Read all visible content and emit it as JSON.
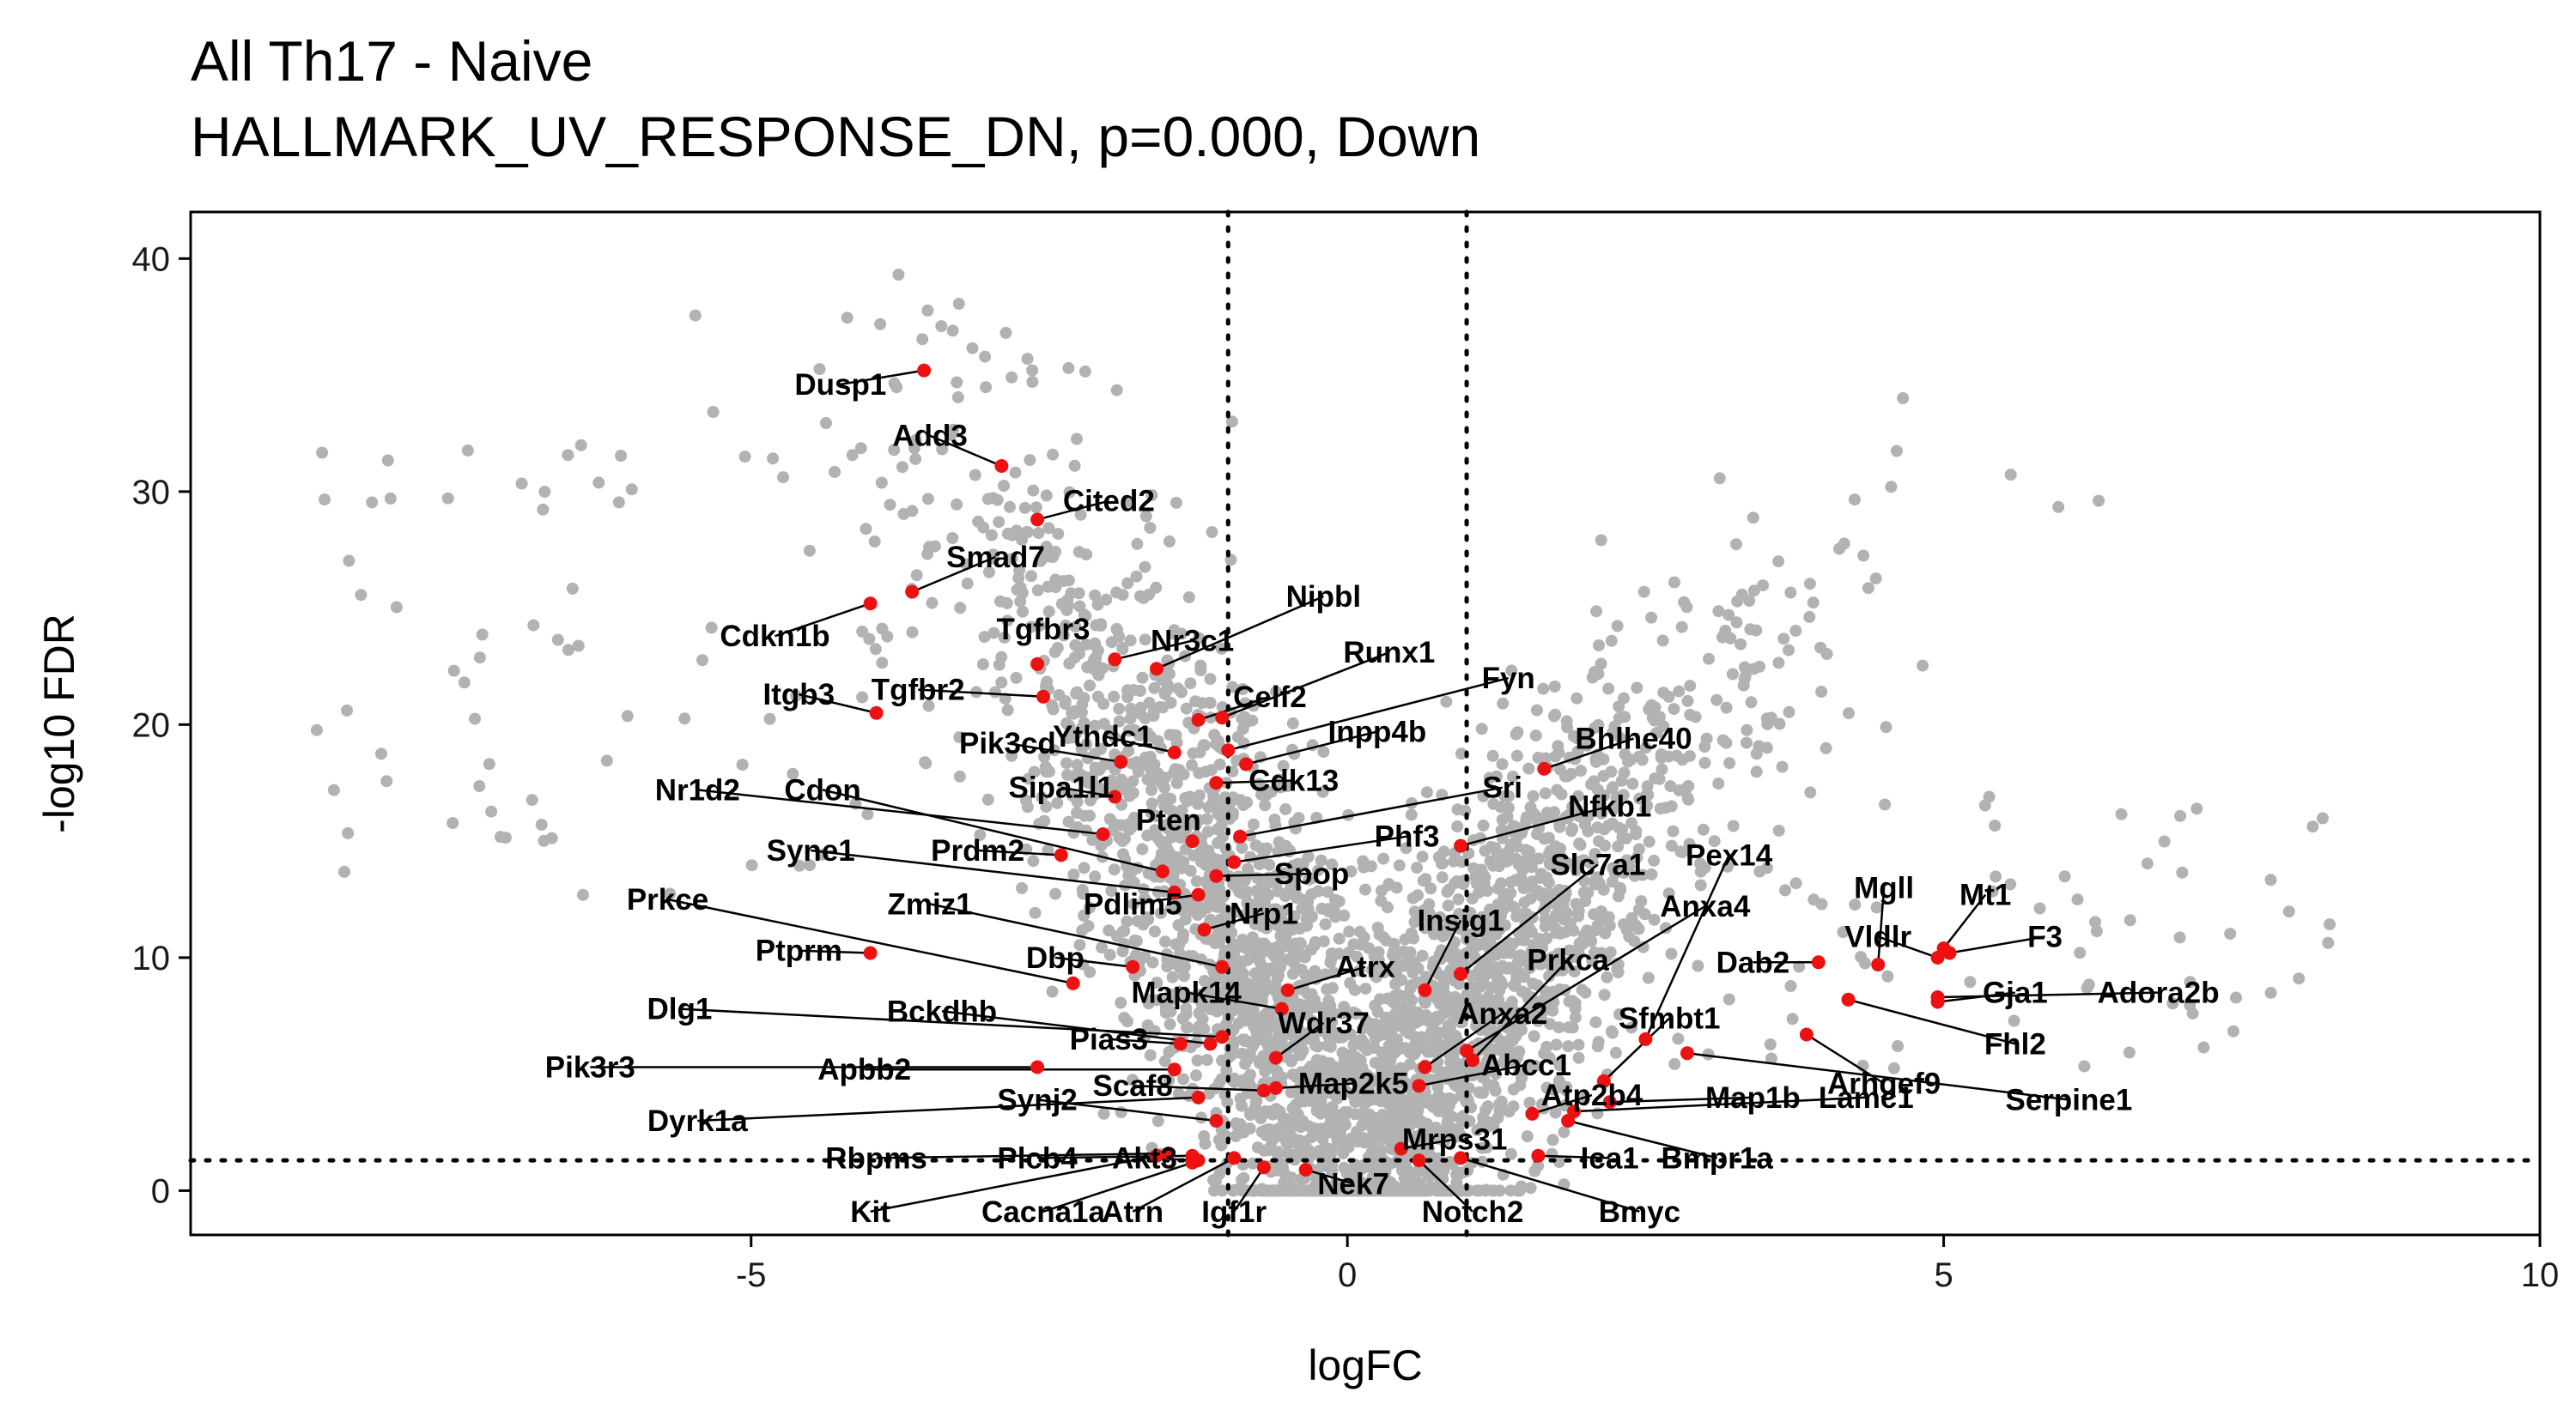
{
  "chart_data": {
    "type": "scatter",
    "title": "All Th17 - Naive",
    "subtitle": "HALLMARK_UV_RESPONSE_DN, p=0.000, Down",
    "xlabel": "logFC",
    "ylabel": "-log10 FDR",
    "xlim": [
      -9.7,
      10.0
    ],
    "ylim": [
      -1.9,
      42.0
    ],
    "x_ticks": [
      -5,
      0,
      5,
      10
    ],
    "y_ticks": [
      0,
      10,
      20,
      30,
      40
    ],
    "x_tick_labels": [
      "-5",
      "0",
      "5",
      "10"
    ],
    "y_tick_labels": [
      "0",
      "10",
      "20",
      "30",
      "40"
    ],
    "grid": false,
    "legend": "none",
    "threshold_lines": {
      "logFC": [
        -1,
        1
      ],
      "neg_log10_fdr": 1.3
    },
    "colors": {
      "background_points": "#b2b2b2",
      "highlight_points": "#ee1111",
      "axes": "#000000"
    },
    "background_cloud": {
      "count": 3300,
      "max_neg_log10_fdr": 40.0,
      "max_abs_logFC": 9.2
    },
    "highlighted_genes": [
      {
        "name": "Dusp1",
        "x": -3.55,
        "y": 35.2,
        "lx": -4.25,
        "ly": 34.6
      },
      {
        "name": "Add3",
        "x": -2.9,
        "y": 31.1,
        "lx": -3.5,
        "ly": 32.4
      },
      {
        "name": "Cited2",
        "x": -2.6,
        "y": 28.8,
        "lx": -2.0,
        "ly": 29.6
      },
      {
        "name": "Smad7",
        "x": -3.65,
        "y": 25.7,
        "lx": -2.95,
        "ly": 27.2
      },
      {
        "name": "Cdkn1b",
        "x": -4.0,
        "y": 25.2,
        "lx": -4.8,
        "ly": 23.8
      },
      {
        "name": "Tgfbr3",
        "x": -2.6,
        "y": 22.6,
        "lx": -2.55,
        "ly": 24.1
      },
      {
        "name": "Nipbl",
        "x": -1.6,
        "y": 22.4,
        "lx": -0.2,
        "ly": 25.5
      },
      {
        "name": "Nr3c1",
        "x": -1.95,
        "y": 22.8,
        "lx": -1.3,
        "ly": 23.6
      },
      {
        "name": "Itgb3",
        "x": -3.95,
        "y": 20.5,
        "lx": -4.6,
        "ly": 21.3
      },
      {
        "name": "Tgfbr2",
        "x": -2.55,
        "y": 21.2,
        "lx": -3.6,
        "ly": 21.5
      },
      {
        "name": "Runx1",
        "x": -1.05,
        "y": 20.3,
        "lx": 0.35,
        "ly": 23.1
      },
      {
        "name": "Celf2",
        "x": -1.25,
        "y": 20.2,
        "lx": -0.65,
        "ly": 21.2
      },
      {
        "name": "Fyn",
        "x": -1.0,
        "y": 18.9,
        "lx": 1.35,
        "ly": 22.0
      },
      {
        "name": "Pik3cd",
        "x": -1.9,
        "y": 18.4,
        "lx": -2.85,
        "ly": 19.2
      },
      {
        "name": "Ythdc1",
        "x": -1.45,
        "y": 18.8,
        "lx": -2.05,
        "ly": 19.5
      },
      {
        "name": "Inpp4b",
        "x": -0.85,
        "y": 18.3,
        "lx": 0.25,
        "ly": 19.7
      },
      {
        "name": "Bhlhe40",
        "x": 1.65,
        "y": 18.1,
        "lx": 2.4,
        "ly": 19.4
      },
      {
        "name": "Cdk13",
        "x": -1.1,
        "y": 17.5,
        "lx": -0.45,
        "ly": 17.6
      },
      {
        "name": "Sri",
        "x": -0.9,
        "y": 15.2,
        "lx": 1.3,
        "ly": 17.3
      },
      {
        "name": "Sipa1l1",
        "x": -1.95,
        "y": 16.9,
        "lx": -2.4,
        "ly": 17.3
      },
      {
        "name": "Nr1d2",
        "x": -2.05,
        "y": 15.3,
        "lx": -5.45,
        "ly": 17.2
      },
      {
        "name": "Cdon",
        "x": -1.55,
        "y": 13.7,
        "lx": -4.4,
        "ly": 17.2
      },
      {
        "name": "Nfkb1",
        "x": 0.95,
        "y": 14.8,
        "lx": 2.2,
        "ly": 16.5
      },
      {
        "name": "Pten",
        "x": -1.3,
        "y": 15.0,
        "lx": -1.5,
        "ly": 15.9
      },
      {
        "name": "Phf3",
        "x": -0.95,
        "y": 14.1,
        "lx": 0.5,
        "ly": 15.2
      },
      {
        "name": "Syne1",
        "x": -1.45,
        "y": 12.8,
        "lx": -4.5,
        "ly": 14.6
      },
      {
        "name": "Prdm2",
        "x": -2.4,
        "y": 14.4,
        "lx": -3.1,
        "ly": 14.6
      },
      {
        "name": "Pex14",
        "x": 2.5,
        "y": 6.5,
        "lx": 3.2,
        "ly": 14.4
      },
      {
        "name": "Slc7a1",
        "x": 0.95,
        "y": 9.3,
        "lx": 2.1,
        "ly": 14.0
      },
      {
        "name": "Spop",
        "x": -1.1,
        "y": 13.5,
        "lx": -0.3,
        "ly": 13.6
      },
      {
        "name": "Mgll",
        "x": 4.45,
        "y": 9.7,
        "lx": 4.5,
        "ly": 13.0
      },
      {
        "name": "Mt1",
        "x": 5.0,
        "y": 10.4,
        "lx": 5.35,
        "ly": 12.7
      },
      {
        "name": "Prkce",
        "x": -2.3,
        "y": 8.9,
        "lx": -5.7,
        "ly": 12.5
      },
      {
        "name": "Zmiz1",
        "x": -1.05,
        "y": 9.6,
        "lx": -3.5,
        "ly": 12.3
      },
      {
        "name": "Pdlim5",
        "x": -1.25,
        "y": 12.7,
        "lx": -1.8,
        "ly": 12.3
      },
      {
        "name": "Anxa4",
        "x": 1.0,
        "y": 6.0,
        "lx": 3.0,
        "ly": 12.2
      },
      {
        "name": "Nrp1",
        "x": -1.2,
        "y": 11.2,
        "lx": -0.7,
        "ly": 11.9
      },
      {
        "name": "Insig1",
        "x": 0.65,
        "y": 8.6,
        "lx": 0.95,
        "ly": 11.6
      },
      {
        "name": "Vldlr",
        "x": 4.95,
        "y": 10.0,
        "lx": 4.45,
        "ly": 10.9
      },
      {
        "name": "F3",
        "x": 5.05,
        "y": 10.2,
        "lx": 5.85,
        "ly": 10.9
      },
      {
        "name": "Ptprm",
        "x": -4.0,
        "y": 10.2,
        "lx": -4.6,
        "ly": 10.3
      },
      {
        "name": "Dbp",
        "x": -1.8,
        "y": 9.6,
        "lx": -2.45,
        "ly": 10.0
      },
      {
        "name": "Dab2",
        "x": 3.95,
        "y": 9.8,
        "lx": 3.4,
        "ly": 9.8
      },
      {
        "name": "Atrx",
        "x": -0.5,
        "y": 8.6,
        "lx": 0.15,
        "ly": 9.6
      },
      {
        "name": "Prkca",
        "x": 1.05,
        "y": 5.6,
        "lx": 1.85,
        "ly": 9.9
      },
      {
        "name": "Gja1",
        "x": 4.95,
        "y": 8.1,
        "lx": 5.6,
        "ly": 8.5
      },
      {
        "name": "Adora2b",
        "x": 4.95,
        "y": 8.3,
        "lx": 6.8,
        "ly": 8.5
      },
      {
        "name": "Mapk14",
        "x": -0.55,
        "y": 7.8,
        "lx": -1.35,
        "ly": 8.5
      },
      {
        "name": "Dlg1",
        "x": -1.05,
        "y": 6.6,
        "lx": -5.6,
        "ly": 7.8
      },
      {
        "name": "Bckdhb",
        "x": -1.15,
        "y": 6.3,
        "lx": -3.4,
        "ly": 7.7
      },
      {
        "name": "Anxa2",
        "x": 0.65,
        "y": 5.3,
        "lx": 1.3,
        "ly": 7.6
      },
      {
        "name": "Sfmbt1",
        "x": 2.15,
        "y": 4.7,
        "lx": 2.7,
        "ly": 7.4
      },
      {
        "name": "Wdr37",
        "x": -0.6,
        "y": 5.7,
        "lx": -0.2,
        "ly": 7.2
      },
      {
        "name": "Fhl2",
        "x": 4.2,
        "y": 8.2,
        "lx": 5.6,
        "ly": 6.3
      },
      {
        "name": "Pias3",
        "x": -1.4,
        "y": 6.3,
        "lx": -2.0,
        "ly": 6.5
      },
      {
        "name": "Arhgef9",
        "x": 3.85,
        "y": 6.7,
        "lx": 4.5,
        "ly": 4.6
      },
      {
        "name": "Pik3r3",
        "x": -2.6,
        "y": 5.3,
        "lx": -6.35,
        "ly": 5.3
      },
      {
        "name": "Apbb2",
        "x": -1.45,
        "y": 5.2,
        "lx": -4.05,
        "ly": 5.2
      },
      {
        "name": "Abcc1",
        "x": 0.6,
        "y": 4.5,
        "lx": 1.5,
        "ly": 5.4
      },
      {
        "name": "Map2k5",
        "x": -0.6,
        "y": 4.4,
        "lx": 0.05,
        "ly": 4.6
      },
      {
        "name": "Scaf8",
        "x": -0.7,
        "y": 4.3,
        "lx": -1.8,
        "ly": 4.5
      },
      {
        "name": "Synj2",
        "x": -1.1,
        "y": 3.0,
        "lx": -2.6,
        "ly": 3.9
      },
      {
        "name": "Atp2b4",
        "x": 1.55,
        "y": 3.3,
        "lx": 2.05,
        "ly": 4.1
      },
      {
        "name": "Map1b",
        "x": 2.2,
        "y": 3.8,
        "lx": 3.4,
        "ly": 4.0
      },
      {
        "name": "Lamc1",
        "x": 1.9,
        "y": 3.4,
        "lx": 4.35,
        "ly": 4.0
      },
      {
        "name": "Serpine1",
        "x": 2.85,
        "y": 5.9,
        "lx": 6.05,
        "ly": 3.9
      },
      {
        "name": "Dyrk1a",
        "x": -1.25,
        "y": 4.0,
        "lx": -5.45,
        "ly": 3.0
      },
      {
        "name": "Mrps31",
        "x": 0.45,
        "y": 1.8,
        "lx": 0.9,
        "ly": 2.2
      },
      {
        "name": "Bmpr1a",
        "x": 1.85,
        "y": 3.0,
        "lx": 3.1,
        "ly": 1.4
      },
      {
        "name": "Ica1",
        "x": 1.6,
        "y": 1.5,
        "lx": 2.2,
        "ly": 1.4
      },
      {
        "name": "Rbpms",
        "x": -1.5,
        "y": 1.6,
        "lx": -3.95,
        "ly": 1.4
      },
      {
        "name": "Plcb4",
        "x": -1.3,
        "y": 1.5,
        "lx": -2.6,
        "ly": 1.4
      },
      {
        "name": "Akt3",
        "x": -1.25,
        "y": 1.3,
        "lx": -1.7,
        "ly": 1.4
      },
      {
        "name": "Nek7",
        "x": -0.35,
        "y": 0.9,
        "lx": 0.05,
        "ly": 0.3
      },
      {
        "name": "Notch2",
        "x": 0.6,
        "y": 1.3,
        "lx": 1.05,
        "ly": -0.9
      },
      {
        "name": "Bmyc",
        "x": 0.95,
        "y": 1.4,
        "lx": 2.45,
        "ly": -0.9
      },
      {
        "name": "Kit",
        "x": -1.6,
        "y": 1.5,
        "lx": -4.0,
        "ly": -0.9
      },
      {
        "name": "Cacna1a",
        "x": -1.3,
        "y": 1.2,
        "lx": -2.55,
        "ly": -0.9
      },
      {
        "name": "Atrn",
        "x": -0.95,
        "y": 1.4,
        "lx": -1.8,
        "ly": -0.9
      },
      {
        "name": "Igf1r",
        "x": -0.7,
        "y": 1.0,
        "lx": -0.95,
        "ly": -0.9
      }
    ]
  }
}
